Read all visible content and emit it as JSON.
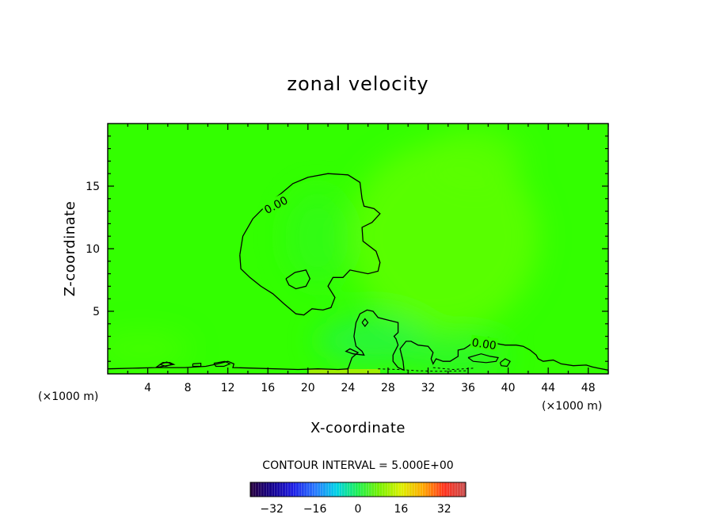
{
  "chart_data": {
    "type": "heatmap",
    "title": "zonal velocity",
    "xlabel": "X-coordinate",
    "ylabel": "Z-coordinate",
    "x_unit_left": "(×1000 m)",
    "x_unit_right": "(×1000 m)",
    "xlim": [
      0,
      50
    ],
    "ylim": [
      0,
      20
    ],
    "x_ticks": [
      4,
      8,
      12,
      16,
      20,
      24,
      28,
      32,
      36,
      40,
      44,
      48
    ],
    "x_tick_labels": [
      "4",
      "8",
      "12",
      "16",
      "20",
      "24",
      "28",
      "32",
      "36",
      "40",
      "44",
      "48"
    ],
    "y_ticks": [
      5,
      10,
      15
    ],
    "y_tick_labels": [
      "5",
      "10",
      "15"
    ],
    "contour_label": "0.00",
    "contour_interval_text": "CONTOUR INTERVAL = 5.000E+00",
    "colorbar": {
      "range": [
        -40,
        40
      ],
      "ticks": [
        -32,
        -16,
        0,
        16,
        32
      ],
      "tick_labels": [
        "−32",
        "−16",
        "0",
        "16",
        "32"
      ]
    },
    "zero_contour_main": [
      [
        13.2,
        9.5
      ],
      [
        13.5,
        11
      ],
      [
        14.5,
        12.4
      ],
      [
        16,
        13.6
      ],
      [
        17.3,
        14.4
      ],
      [
        18.5,
        15.2
      ],
      [
        20,
        15.7
      ],
      [
        22,
        16
      ],
      [
        24,
        15.9
      ],
      [
        25.2,
        15.3
      ],
      [
        25.4,
        14
      ],
      [
        25.6,
        13.4
      ],
      [
        26.6,
        13.2
      ],
      [
        27.2,
        12.8
      ],
      [
        26.4,
        12.1
      ],
      [
        25.4,
        11.7
      ],
      [
        25.5,
        10.6
      ],
      [
        26.8,
        9.8
      ],
      [
        27.2,
        8.9
      ],
      [
        27,
        8.2
      ],
      [
        26,
        8
      ],
      [
        24.2,
        8.3
      ],
      [
        23.5,
        7.7
      ],
      [
        22.5,
        7.7
      ],
      [
        22,
        7
      ],
      [
        22.7,
        6.1
      ],
      [
        22.3,
        5.3
      ],
      [
        21.5,
        5.1
      ],
      [
        20.4,
        5.2
      ],
      [
        19.6,
        4.7
      ],
      [
        18.8,
        4.8
      ],
      [
        17.6,
        5.6
      ],
      [
        16.5,
        6.4
      ],
      [
        15.3,
        7
      ],
      [
        14.2,
        7.7
      ],
      [
        13.3,
        8.4
      ],
      [
        13.2,
        9.5
      ]
    ],
    "zero_contour_island": [
      [
        17.8,
        7.6
      ],
      [
        18.7,
        8.1
      ],
      [
        19.8,
        8.3
      ],
      [
        20.2,
        7.6
      ],
      [
        19.8,
        7
      ],
      [
        18.8,
        6.8
      ],
      [
        18.1,
        7.1
      ],
      [
        17.8,
        7.6
      ]
    ],
    "zero_contour_lower": [
      [
        0,
        0.4
      ],
      [
        2.5,
        0.45
      ],
      [
        4.8,
        0.5
      ],
      [
        5.5,
        0.6
      ],
      [
        6.6,
        0.75
      ],
      [
        6.2,
        0.9
      ],
      [
        5.5,
        0.9
      ],
      [
        4.8,
        0.5
      ],
      [
        7.7,
        0.5
      ],
      [
        9.8,
        0.6
      ],
      [
        11,
        0.8
      ],
      [
        12,
        1
      ],
      [
        12.6,
        0.8
      ],
      [
        12.5,
        0.5
      ],
      [
        19,
        0.35
      ],
      [
        21,
        0.4
      ],
      [
        23,
        0.35
      ],
      [
        24,
        0.4
      ],
      [
        24.4,
        1.3
      ],
      [
        25,
        1.7
      ],
      [
        24.2,
        2
      ],
      [
        23.8,
        1.8
      ],
      [
        24.5,
        1.6
      ],
      [
        25.6,
        1.5
      ],
      [
        25.4,
        1.8
      ],
      [
        24.8,
        2.2
      ],
      [
        24.6,
        3
      ],
      [
        24.8,
        4.1
      ],
      [
        25.2,
        4.8
      ],
      [
        25.9,
        5.1
      ],
      [
        26.5,
        5
      ],
      [
        27,
        4.5
      ],
      [
        28,
        4.3
      ],
      [
        29,
        4.1
      ],
      [
        29,
        3.3
      ],
      [
        28.6,
        3
      ],
      [
        28.8,
        2.8
      ],
      [
        29,
        2.3
      ],
      [
        28.5,
        1.5
      ],
      [
        28.5,
        1
      ],
      [
        29,
        0.5
      ],
      [
        29.6,
        0.3
      ],
      [
        29.5,
        1
      ],
      [
        29.2,
        2
      ],
      [
        29.8,
        2.6
      ],
      [
        30.3,
        2.6
      ],
      [
        31,
        2.3
      ],
      [
        32,
        2.2
      ],
      [
        32.5,
        1.7
      ],
      [
        32.3,
        1.2
      ],
      [
        32.5,
        0.8
      ],
      [
        32.8,
        1.2
      ],
      [
        33.5,
        1
      ],
      [
        34.2,
        1
      ],
      [
        35,
        1.4
      ],
      [
        35,
        1.9
      ],
      [
        35.6,
        2
      ],
      [
        36,
        2.2
      ],
      [
        36.5,
        2.5
      ],
      [
        37.2,
        2.8
      ],
      [
        38,
        2.9
      ],
      [
        38.5,
        2.8
      ],
      [
        39,
        2.4
      ],
      [
        39.7,
        2.3
      ],
      [
        40.8,
        2.3
      ],
      [
        41.5,
        2.2
      ],
      [
        42.2,
        1.9
      ],
      [
        42.8,
        1.5
      ],
      [
        43,
        1.2
      ],
      [
        43.5,
        1
      ],
      [
        44.5,
        1.1
      ],
      [
        45.3,
        0.8
      ],
      [
        46.5,
        0.65
      ],
      [
        47.8,
        0.7
      ],
      [
        48.4,
        0.55
      ],
      [
        49,
        0.45
      ],
      [
        50,
        0.3
      ]
    ],
    "zero_contour_loops": [
      [
        [
          36,
          1.3
        ],
        [
          37.3,
          1.6
        ],
        [
          38.2,
          1.4
        ],
        [
          39,
          1.3
        ],
        [
          38.8,
          1
        ],
        [
          37.8,
          0.9
        ],
        [
          36.5,
          1
        ],
        [
          36,
          1.3
        ]
      ],
      [
        [
          39.2,
          0.9
        ],
        [
          39.7,
          1.2
        ],
        [
          40.2,
          1
        ],
        [
          39.9,
          0.6
        ],
        [
          39.3,
          0.65
        ],
        [
          39.2,
          0.9
        ]
      ],
      [
        [
          25.4,
          4.1
        ],
        [
          25.7,
          4.4
        ],
        [
          26,
          4.1
        ],
        [
          25.7,
          3.8
        ],
        [
          25.4,
          4.1
        ]
      ],
      [
        [
          8.5,
          0.8
        ],
        [
          9.3,
          0.85
        ],
        [
          9.3,
          0.6
        ],
        [
          8.5,
          0.6
        ],
        [
          8.5,
          0.8
        ]
      ],
      [
        [
          10.6,
          0.85
        ],
        [
          11.7,
          1
        ],
        [
          12.2,
          0.8
        ],
        [
          11.6,
          0.6
        ],
        [
          10.8,
          0.6
        ],
        [
          10.6,
          0.85
        ]
      ],
      [
        [
          5.2,
          0.75
        ],
        [
          5.9,
          0.95
        ],
        [
          6.4,
          0.75
        ],
        [
          5.8,
          0.6
        ],
        [
          5.2,
          0.75
        ]
      ]
    ],
    "dashed_contours": [
      [
        [
          27,
          0.4
        ],
        [
          29,
          0.35
        ],
        [
          31,
          0.25
        ],
        [
          33,
          0.2
        ],
        [
          36,
          0.25
        ]
      ],
      [
        [
          32.5,
          0.5
        ],
        [
          34.5,
          0.35
        ],
        [
          36.5,
          0.45
        ]
      ]
    ],
    "label_positions": [
      [
        16.8,
        13.5
      ],
      [
        37.6,
        2.4
      ]
    ],
    "colors": {
      "field_green": "#33ff00",
      "field_light": "#66ff00",
      "field_teal": "#22ee66",
      "field_yellow": "#a0f000"
    }
  }
}
